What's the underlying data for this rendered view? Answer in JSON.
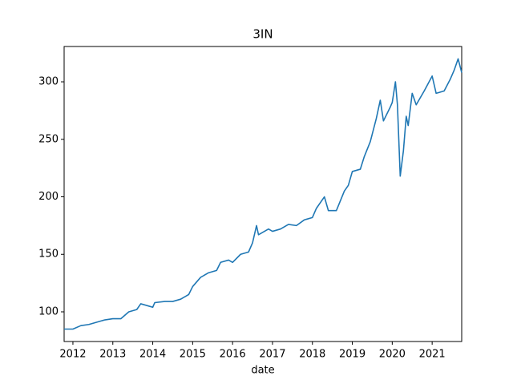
{
  "chart_data": {
    "type": "line",
    "title": "3IN",
    "x_label": "date",
    "x": [
      2011.78,
      2012.0,
      2012.2,
      2012.4,
      2012.6,
      2012.8,
      2013.0,
      2013.2,
      2013.4,
      2013.6,
      2013.7,
      2013.9,
      2014.0,
      2014.05,
      2014.3,
      2014.5,
      2014.7,
      2014.9,
      2015.0,
      2015.2,
      2015.4,
      2015.6,
      2015.7,
      2015.9,
      2016.0,
      2016.2,
      2016.4,
      2016.5,
      2016.6,
      2016.65,
      2016.9,
      2017.0,
      2017.2,
      2017.4,
      2017.6,
      2017.8,
      2018.0,
      2018.1,
      2018.3,
      2018.4,
      2018.6,
      2018.8,
      2018.9,
      2019.0,
      2019.2,
      2019.3,
      2019.45,
      2019.6,
      2019.7,
      2019.78,
      2019.95,
      2020.0,
      2020.08,
      2020.13,
      2020.2,
      2020.28,
      2020.35,
      2020.4,
      2020.5,
      2020.6,
      2020.8,
      2021.0,
      2021.1,
      2021.3,
      2021.45,
      2021.55,
      2021.65,
      2021.74
    ],
    "series": [
      {
        "name": "3IN",
        "color": "#1f77b4",
        "values": [
          85,
          85,
          88,
          89,
          91,
          93,
          94,
          94,
          100,
          102,
          107,
          105,
          104,
          108,
          109,
          109,
          111,
          115,
          122,
          130,
          134,
          136,
          143,
          145,
          143,
          150,
          152,
          160,
          175,
          167,
          172,
          170,
          172,
          176,
          175,
          180,
          182,
          190,
          200,
          188,
          188,
          205,
          210,
          222,
          224,
          235,
          248,
          268,
          284,
          266,
          278,
          282,
          300,
          280,
          218,
          240,
          270,
          262,
          290,
          280,
          292,
          305,
          290,
          292,
          302,
          310,
          320,
          308
        ]
      }
    ],
    "xlim": [
      2011.78,
      2021.74
    ],
    "xticks": [
      2012,
      2013,
      2014,
      2015,
      2016,
      2017,
      2018,
      2019,
      2020,
      2021
    ],
    "ylim": [
      74.2,
      330.7
    ],
    "yticks": [
      100,
      150,
      200,
      250,
      300
    ]
  }
}
